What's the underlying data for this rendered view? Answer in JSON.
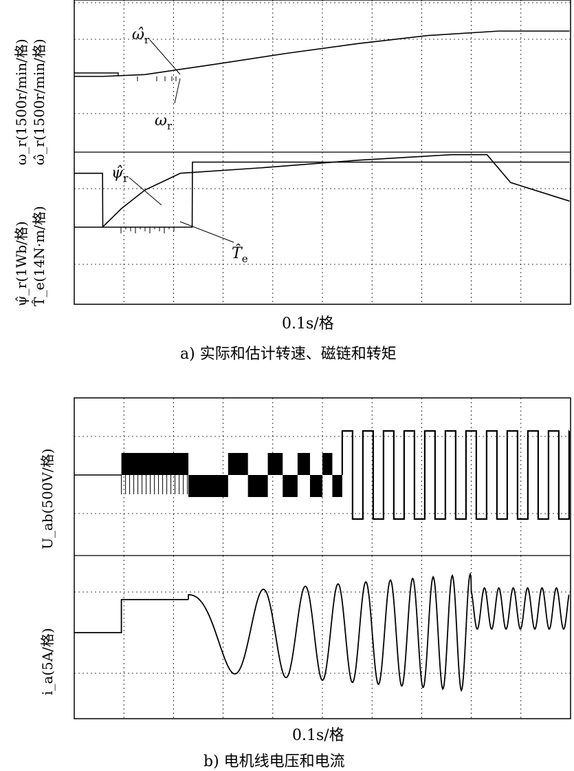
{
  "panel_a": {
    "ylabel_top_1": "ω_r(1500r/min/格)",
    "ylabel_top_2": "ω̂_r(1500r/min/格)",
    "ylabel_bot_1": "ψ̂_r(1Wb/格)",
    "ylabel_bot_2": "T̂_e(14N·m/格)",
    "xlabel": "0.1s/格",
    "caption": "a)  实际和估计转速、磁链和转矩",
    "ann_omega_hat": "ω̂",
    "ann_omega_hat_sub": "r",
    "ann_omega": "ω",
    "ann_omega_sub": "r",
    "ann_psi_hat": "ψ̂",
    "ann_psi_hat_sub": "r",
    "ann_te_hat": "T̂",
    "ann_te_hat_sub": "e"
  },
  "panel_b": {
    "ylabel_top": "U_ab(500V/格)",
    "ylabel_bot": "i_a(5A/格)",
    "xlabel": "0.1s/格",
    "caption": "b)  电机线电压和电流"
  },
  "chart_data": [
    {
      "type": "line",
      "title": "实际和估计转速、磁链和转矩",
      "xlabel": "0.1s/格",
      "x_unit_per_div": "0.1s",
      "grid": true,
      "series": [
        {
          "name": "ω_r / ω̂_r",
          "axis": "top",
          "unit_per_div": "1500r/min/格",
          "x": [
            0,
            0.12,
            0.3,
            0.6,
            0.9,
            1.2,
            1.5,
            1.8,
            2.1
          ],
          "y": [
            0,
            0,
            0.05,
            0.33,
            0.62,
            0.88,
            1.1,
            1.22,
            1.22
          ]
        },
        {
          "name": "ψ̂_r",
          "axis": "bottom",
          "unit_per_div": "1Wb/格",
          "x": [
            0,
            0.12,
            0.2,
            0.3,
            0.45,
            0.8,
            1.2,
            1.6,
            1.75,
            1.85,
            2.1
          ],
          "y": [
            0,
            0,
            0.5,
            1.0,
            1.45,
            1.6,
            1.8,
            1.95,
            1.95,
            1.2,
            0.7
          ]
        },
        {
          "name": "T̂_e",
          "axis": "bottom",
          "unit_per_div": "14N·m/格",
          "x": [
            0,
            0.12,
            0.121,
            0.5,
            0.501,
            2.1
          ],
          "y": [
            1.45,
            1.45,
            0,
            0,
            1.75,
            1.75
          ]
        }
      ]
    },
    {
      "type": "line",
      "title": "电机线电压和电流",
      "xlabel": "0.1s/格",
      "x_unit_per_div": "0.1s",
      "grid": true,
      "series": [
        {
          "name": "U_ab",
          "axis": "top",
          "unit_per_div": "500V/格",
          "description_values": {
            "step_start_div": 0.95,
            "amplitude_div": 1.3
          }
        },
        {
          "name": "i_a",
          "axis": "bottom",
          "unit_per_div": "5A/格",
          "x_div": [
            0,
            0.95,
            1.7,
            2.1,
            2.75,
            8.7,
            9.55
          ],
          "y_div": [
            0,
            0.85,
            0.85,
            0,
            -1.5,
            1.55,
            0.6
          ]
        }
      ]
    }
  ]
}
